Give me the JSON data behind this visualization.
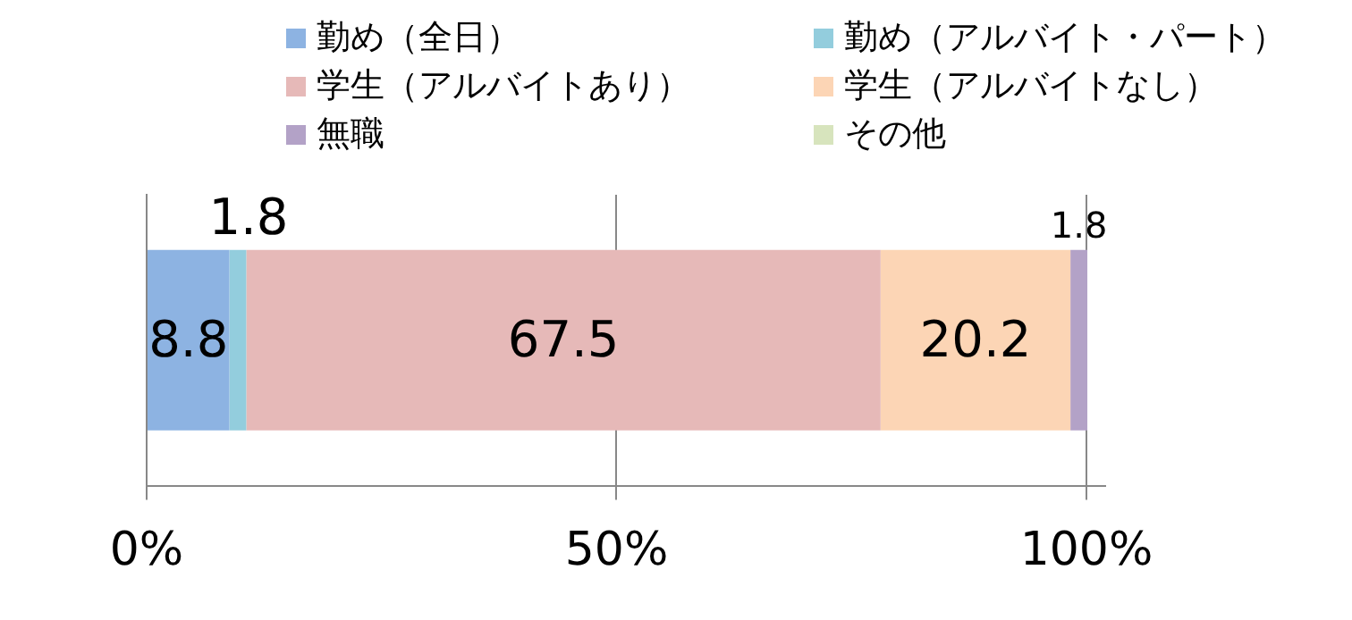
{
  "chart_data": {
    "type": "bar",
    "orientation": "horizontal",
    "stacked": true,
    "categories": [
      null
    ],
    "series": [
      {
        "name": "勤め（全日）",
        "color": "#8db3e2",
        "values": [
          8.8
        ]
      },
      {
        "name": "勤め（アルバイト・パート）",
        "color": "#93cddd",
        "values": [
          1.8
        ]
      },
      {
        "name": "学生（アルバイトあり）",
        "color": "#e6b9b8",
        "values": [
          67.5
        ]
      },
      {
        "name": "学生（アルバイトなし）",
        "color": "#fcd5b5",
        "values": [
          20.2
        ]
      },
      {
        "name": "無職",
        "color": "#b3a2c7",
        "values": [
          1.8
        ]
      },
      {
        "name": "その他",
        "color": "#d7e4bd",
        "values": [
          null
        ]
      }
    ],
    "xlim": [
      0,
      102
    ],
    "xticks": [
      {
        "value": 0,
        "label": "0%"
      },
      {
        "value": 50,
        "label": "50%"
      },
      {
        "value": 100,
        "label": "100%"
      }
    ],
    "grid": "x",
    "legend": "top",
    "data_labels": true
  }
}
